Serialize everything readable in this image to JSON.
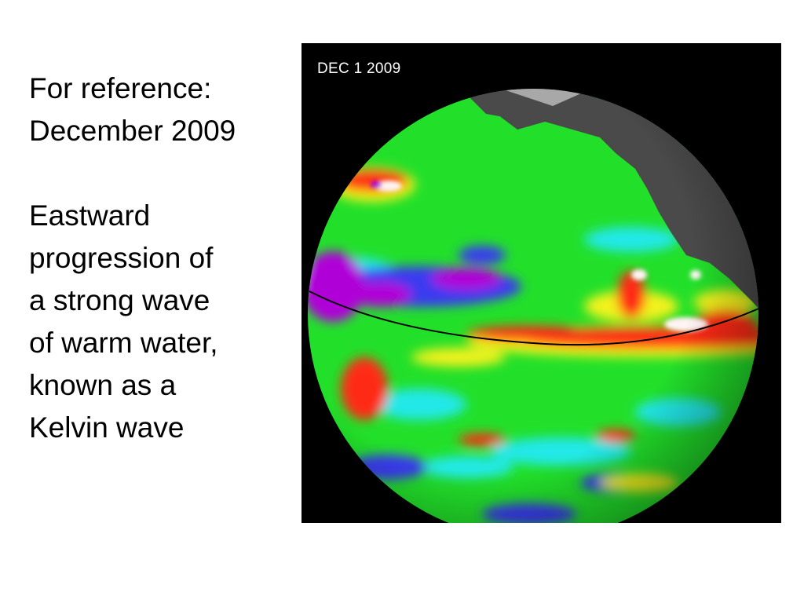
{
  "caption": {
    "reference_line1": "For reference:",
    "reference_line2": "December 2009",
    "desc_lines": [
      "Eastward",
      "progression of",
      "a strong wave",
      "of warm water,",
      "known as a",
      "Kelvin wave"
    ]
  },
  "figure": {
    "date_label": "DEC  1 2009",
    "colors": {
      "background": "#000000",
      "ocean_base": "#22e02a",
      "land": "#4a4a4a",
      "ice": "#a8a8a8",
      "warm_red": "#ff2a12",
      "hot_white": "#fff4f4",
      "cool_blue": "#3a3af0",
      "cold_purple": "#b000d8",
      "cyan": "#20e8e8",
      "yellow": "#f2f21a",
      "equator_line": "#000000"
    }
  }
}
